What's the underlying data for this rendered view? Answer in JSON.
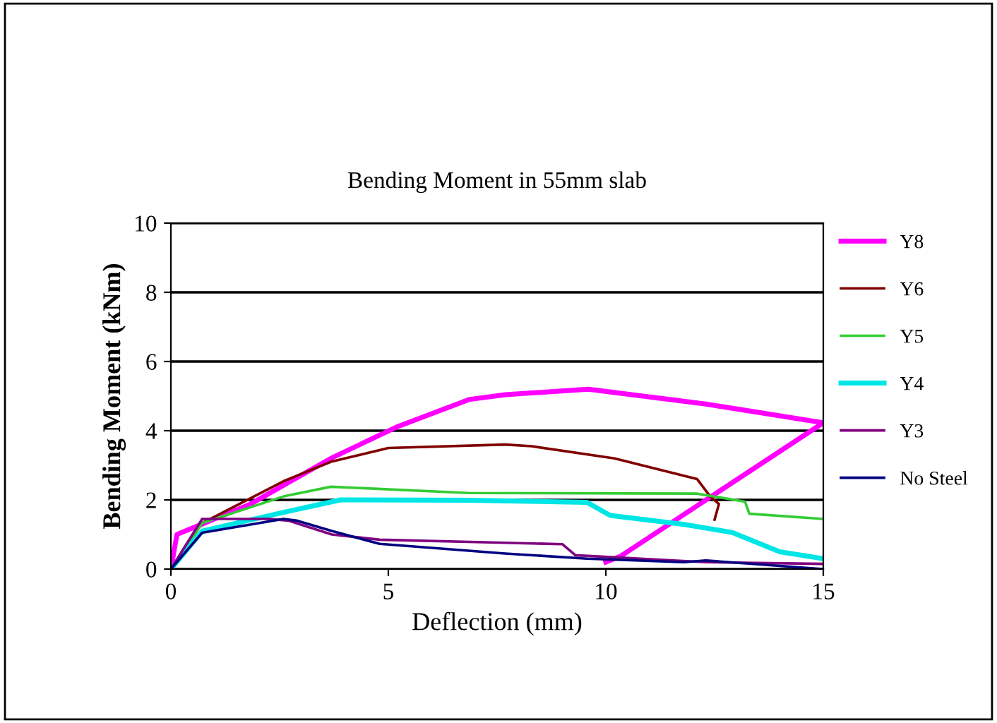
{
  "chart_data": {
    "type": "line",
    "title": "Bending Moment in 55mm slab",
    "xlabel": "Deflection (mm)",
    "ylabel": "Bending Moment (kNm)",
    "xlim": [
      0,
      15
    ],
    "xticks": [
      0,
      5,
      10,
      15
    ],
    "ylim": [
      0,
      10
    ],
    "yticks": [
      0,
      2,
      4,
      6,
      8,
      10
    ],
    "grid": "y",
    "legend": "right",
    "marker": "none",
    "line_style": "solid",
    "series": [
      {
        "name": "Y8",
        "color": "#ff00ff",
        "x": [
          0,
          0.14,
          0.72,
          1.83,
          3.68,
          5.18,
          6.85,
          7.69,
          9.6,
          12.3,
          13.4,
          15,
          10.35,
          10.0
        ],
        "values": [
          0,
          1.0,
          1.3,
          1.88,
          3.2,
          4.1,
          4.9,
          5.04,
          5.2,
          4.77,
          4.55,
          4.23,
          0.38,
          0.2
        ]
      },
      {
        "name": "Y6",
        "color": "#800000",
        "x": [
          0,
          0.72,
          2.59,
          3.68,
          5.0,
          7.69,
          8.3,
          10.2,
          12.1,
          12.4,
          12.6,
          12.5
        ],
        "values": [
          0,
          1.33,
          2.54,
          3.1,
          3.5,
          3.6,
          3.55,
          3.2,
          2.6,
          2.1,
          1.88,
          1.43
        ]
      },
      {
        "name": "Y5",
        "color": "#33cc33",
        "x": [
          0,
          0.72,
          2.59,
          3.68,
          6.85,
          12.1,
          13.2,
          13.3,
          15
        ],
        "values": [
          0,
          1.33,
          2.1,
          2.38,
          2.2,
          2.18,
          1.95,
          1.6,
          1.45
        ]
      },
      {
        "name": "Y4",
        "color": "#00e5e5",
        "x": [
          0,
          0.72,
          2.59,
          3.9,
          6.85,
          9.57,
          10.1,
          11.8,
          12.9,
          14,
          15
        ],
        "values": [
          0,
          1.1,
          1.64,
          2.0,
          1.99,
          1.93,
          1.55,
          1.29,
          1.06,
          0.5,
          0.3
        ]
      },
      {
        "name": "Y3",
        "color": "#800080",
        "x": [
          0,
          0.72,
          2.26,
          2.7,
          3.7,
          4.8,
          7.69,
          9.0,
          9.3,
          12.3,
          15
        ],
        "values": [
          0,
          1.45,
          1.45,
          1.4,
          1.0,
          0.85,
          0.76,
          0.72,
          0.4,
          0.2,
          0.15
        ]
      },
      {
        "name": "No Steel",
        "color": "#000080",
        "x": [
          0,
          0.72,
          2.59,
          2.9,
          3.7,
          4.8,
          7.69,
          9.57,
          11.8,
          12.3,
          15
        ],
        "values": [
          0,
          1.05,
          1.45,
          1.4,
          1.1,
          0.73,
          0.45,
          0.3,
          0.2,
          0.25,
          0.0
        ]
      }
    ]
  }
}
